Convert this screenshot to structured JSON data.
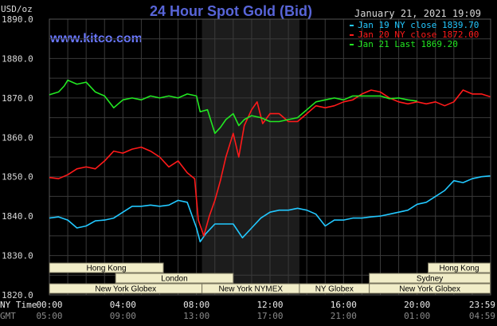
{
  "header": {
    "title": "24 Hour Spot Gold (Bid)",
    "site": "www.kitco.com",
    "timestamp": "January 21, 2021 19:09",
    "unit": "USD/oz"
  },
  "colors": {
    "background": "#000000",
    "grid": "#3a3a3a",
    "highlight": "#1c1c1c",
    "jan19": "#22c8ff",
    "jan20": "#ff1a1a",
    "jan21": "#22e822",
    "session": "#f1edc8"
  },
  "chart_data": {
    "type": "line",
    "title": "24 Hour Spot Gold (Bid)",
    "ylabel": "USD/oz",
    "ylim": [
      1820,
      1890
    ],
    "xlim": [
      0,
      24
    ],
    "grid": true,
    "legend_position": "top-right",
    "y_ticks": [
      "1820.0",
      "1830.0",
      "1840.0",
      "1850.0",
      "1860.0",
      "1870.0",
      "1880.0",
      "1890.0"
    ],
    "x_ticks_ny": [
      "00:00",
      "04:00",
      "08:00",
      "12:00",
      "16:00",
      "20:00",
      "23:59"
    ],
    "x_ticks_gmt": [
      "05:00",
      "09:00",
      "13:00",
      "17:00",
      "21:00",
      "01:00",
      "04:59"
    ],
    "x_tick_hours": [
      0,
      4,
      8,
      12,
      16,
      20,
      23.98
    ],
    "x_row_label_ny": "NY Time",
    "x_row_label_gmt": "GMT",
    "highlight_range": [
      8.3,
      13.6
    ],
    "series": [
      {
        "name": "Jan 19 NY close 1839.70",
        "key": "jan19",
        "points": [
          [
            0,
            1839.5
          ],
          [
            0.5,
            1839.8
          ],
          [
            1,
            1839
          ],
          [
            1.5,
            1837
          ],
          [
            2,
            1837.5
          ],
          [
            2.5,
            1838.8
          ],
          [
            3,
            1839
          ],
          [
            3.5,
            1839.5
          ],
          [
            4,
            1841
          ],
          [
            4.5,
            1842.5
          ],
          [
            5,
            1842.5
          ],
          [
            5.5,
            1842.8
          ],
          [
            6,
            1842.5
          ],
          [
            6.5,
            1842.8
          ],
          [
            7,
            1844
          ],
          [
            7.5,
            1843.5
          ],
          [
            8,
            1837
          ],
          [
            8.2,
            1833.5
          ],
          [
            8.5,
            1835.5
          ],
          [
            9,
            1838
          ],
          [
            9.5,
            1838
          ],
          [
            10,
            1838
          ],
          [
            10.5,
            1834.5
          ],
          [
            11,
            1837
          ],
          [
            11.5,
            1839.5
          ],
          [
            12,
            1841
          ],
          [
            12.5,
            1841.5
          ],
          [
            13,
            1841.5
          ],
          [
            13.5,
            1842
          ],
          [
            14,
            1841.5
          ],
          [
            14.5,
            1840.5
          ],
          [
            15,
            1837.5
          ],
          [
            15.5,
            1839
          ],
          [
            16,
            1839
          ],
          [
            16.5,
            1839.5
          ],
          [
            17,
            1839.5
          ],
          [
            17.5,
            1839.8
          ],
          [
            18,
            1840
          ],
          [
            18.5,
            1840.5
          ],
          [
            19,
            1841
          ],
          [
            19.5,
            1841.5
          ],
          [
            20,
            1843
          ],
          [
            20.5,
            1843.5
          ],
          [
            21,
            1845
          ],
          [
            21.5,
            1846.5
          ],
          [
            22,
            1849
          ],
          [
            22.5,
            1848.5
          ],
          [
            23,
            1849.5
          ],
          [
            23.5,
            1850
          ],
          [
            23.98,
            1850.2
          ]
        ]
      },
      {
        "name": "Jan 20 NY close 1872.00",
        "key": "jan20",
        "points": [
          [
            0,
            1849.8
          ],
          [
            0.5,
            1849.5
          ],
          [
            1,
            1850.5
          ],
          [
            1.5,
            1852
          ],
          [
            2,
            1852.5
          ],
          [
            2.5,
            1852
          ],
          [
            3,
            1854
          ],
          [
            3.5,
            1856.5
          ],
          [
            4,
            1856
          ],
          [
            4.5,
            1857
          ],
          [
            5,
            1857.5
          ],
          [
            5.5,
            1856.5
          ],
          [
            6,
            1855
          ],
          [
            6.5,
            1852.5
          ],
          [
            7,
            1854
          ],
          [
            7.5,
            1851
          ],
          [
            7.9,
            1849.5
          ],
          [
            8.1,
            1839
          ],
          [
            8.4,
            1835
          ],
          [
            8.7,
            1840
          ],
          [
            9,
            1844
          ],
          [
            9.3,
            1849
          ],
          [
            9.6,
            1855
          ],
          [
            10,
            1861
          ],
          [
            10.3,
            1855
          ],
          [
            10.6,
            1863
          ],
          [
            11,
            1867
          ],
          [
            11.3,
            1869
          ],
          [
            11.6,
            1863.5
          ],
          [
            12,
            1866
          ],
          [
            12.5,
            1866
          ],
          [
            13,
            1864
          ],
          [
            13.5,
            1864
          ],
          [
            14,
            1866
          ],
          [
            14.5,
            1868
          ],
          [
            15,
            1867.5
          ],
          [
            15.5,
            1868
          ],
          [
            16,
            1869
          ],
          [
            16.5,
            1869.5
          ],
          [
            17,
            1871
          ],
          [
            17.5,
            1872
          ],
          [
            18,
            1871.5
          ],
          [
            18.5,
            1870
          ],
          [
            19,
            1869
          ],
          [
            19.5,
            1868.5
          ],
          [
            20,
            1869
          ],
          [
            20.5,
            1868.5
          ],
          [
            21,
            1869
          ],
          [
            21.5,
            1868
          ],
          [
            22,
            1869
          ],
          [
            22.5,
            1872
          ],
          [
            23,
            1871
          ],
          [
            23.5,
            1871
          ],
          [
            23.98,
            1870.3
          ]
        ]
      },
      {
        "name": "Jan 21 Last 1869.20",
        "key": "jan21",
        "points": [
          [
            0,
            1870.8
          ],
          [
            0.5,
            1871.5
          ],
          [
            0.8,
            1873
          ],
          [
            1,
            1874.5
          ],
          [
            1.5,
            1873.5
          ],
          [
            2,
            1874
          ],
          [
            2.5,
            1871.5
          ],
          [
            3,
            1870.5
          ],
          [
            3.5,
            1867.5
          ],
          [
            4,
            1869.5
          ],
          [
            4.5,
            1870
          ],
          [
            5,
            1869.5
          ],
          [
            5.5,
            1870.5
          ],
          [
            6,
            1870
          ],
          [
            6.5,
            1870.5
          ],
          [
            7,
            1870
          ],
          [
            7.5,
            1871
          ],
          [
            8,
            1870.5
          ],
          [
            8.2,
            1866.5
          ],
          [
            8.6,
            1867
          ],
          [
            9,
            1861
          ],
          [
            9.3,
            1862.5
          ],
          [
            9.6,
            1864.5
          ],
          [
            10,
            1866
          ],
          [
            10.3,
            1863
          ],
          [
            10.6,
            1864.5
          ],
          [
            11,
            1865.5
          ],
          [
            11.5,
            1865
          ],
          [
            12,
            1864
          ],
          [
            12.5,
            1864
          ],
          [
            13,
            1864.5
          ],
          [
            13.5,
            1865
          ],
          [
            14,
            1867
          ],
          [
            14.5,
            1869
          ],
          [
            15,
            1869.5
          ],
          [
            15.5,
            1870
          ],
          [
            16,
            1869.5
          ],
          [
            16.5,
            1870.5
          ],
          [
            17,
            1870.5
          ],
          [
            17.5,
            1870.5
          ],
          [
            18,
            1870.5
          ],
          [
            18.5,
            1869.8
          ],
          [
            19,
            1870
          ],
          [
            19.5,
            1869.5
          ],
          [
            20,
            1869.2
          ]
        ]
      }
    ]
  },
  "sessions": {
    "hours": [
      {
        "label": "Hong Kong",
        "start": 0,
        "end": 6.2,
        "row": 0
      },
      {
        "label": "Hong Kong",
        "start": 20.6,
        "end": 23.98,
        "row": 0
      },
      {
        "label": "London",
        "start": 3.6,
        "end": 10,
        "row": 1
      },
      {
        "label": "Sydney",
        "start": 17.4,
        "end": 23.98,
        "row": 1
      },
      {
        "label": "New York Globex",
        "start": 0,
        "end": 8.3,
        "row": 2
      },
      {
        "label": "New York NYMEX",
        "start": 8.3,
        "end": 13.6,
        "row": 2
      },
      {
        "label": "NY Globex",
        "start": 13.6,
        "end": 17.4,
        "row": 2
      },
      {
        "label": "New York Globex",
        "start": 17.4,
        "end": 23.98,
        "row": 2
      }
    ]
  }
}
